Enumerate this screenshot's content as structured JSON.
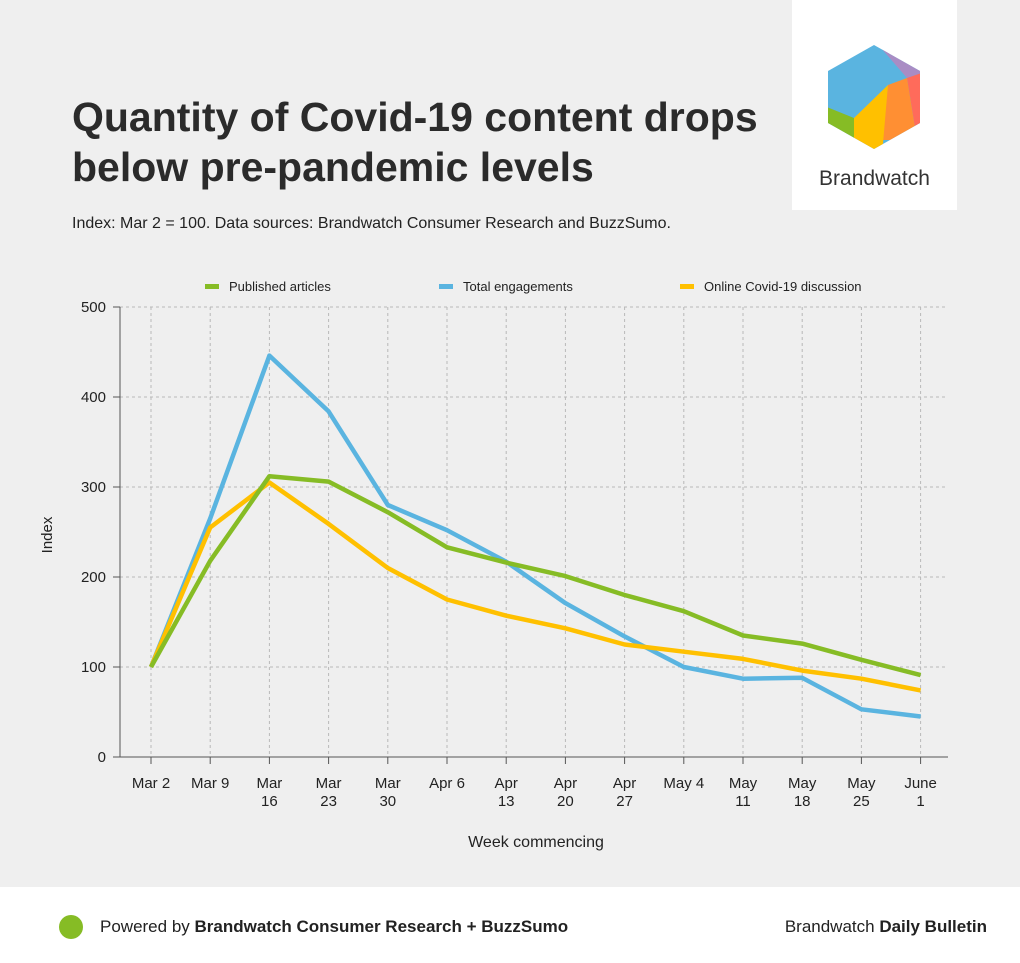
{
  "header": {
    "title": "Quantity of Covid-19 content drops below pre-pandemic levels",
    "subtitle": "Index: Mar 2 = 100. Data sources: Brandwatch Consumer Research and BuzzSumo."
  },
  "logo": {
    "text": "Brandwatch",
    "colors": [
      "#5ab4e0",
      "#a98cc4",
      "#ff6b5b",
      "#ff8f33",
      "#ffc000",
      "#86bc25"
    ]
  },
  "chart_data": {
    "type": "line",
    "title": "Quantity of Covid-19 content drops below pre-pandemic levels",
    "xlabel": "Week commencing",
    "ylabel": "Index",
    "ylim": [
      0,
      500
    ],
    "yticks": [
      0,
      100,
      200,
      300,
      400,
      500
    ],
    "grid": true,
    "legend_position": "top",
    "categories": [
      [
        "Mar 2"
      ],
      [
        "Mar 9"
      ],
      [
        "Mar",
        "16"
      ],
      [
        "Mar",
        "23"
      ],
      [
        "Mar",
        "30"
      ],
      [
        "Apr 6"
      ],
      [
        "Apr",
        "13"
      ],
      [
        "Apr",
        "20"
      ],
      [
        "Apr",
        "27"
      ],
      [
        "May 4"
      ],
      [
        "May",
        "11"
      ],
      [
        "May",
        "18"
      ],
      [
        "May",
        "25"
      ],
      [
        "June",
        "1"
      ]
    ],
    "series": [
      {
        "name": "Published articles",
        "color": "#86bc25",
        "values": [
          100,
          218,
          312,
          306,
          272,
          233,
          216,
          201,
          180,
          162,
          135,
          126,
          108,
          91
        ]
      },
      {
        "name": "Total engagements",
        "color": "#5ab4e0",
        "values": [
          100,
          265,
          446,
          384,
          280,
          252,
          217,
          171,
          134,
          100,
          87,
          88,
          53,
          45
        ]
      },
      {
        "name": "Online Covid-19 discussion",
        "color": "#ffc000",
        "values": [
          100,
          255,
          305,
          259,
          210,
          175,
          157,
          143,
          125,
          117,
          109,
          96,
          87,
          74
        ]
      }
    ]
  },
  "footer": {
    "powered_prefix": "Powered by ",
    "powered_bold": "Brandwatch Consumer Research + BuzzSumo",
    "brand_prefix": "Brandwatch ",
    "brand_bold": "Daily Bulletin"
  }
}
